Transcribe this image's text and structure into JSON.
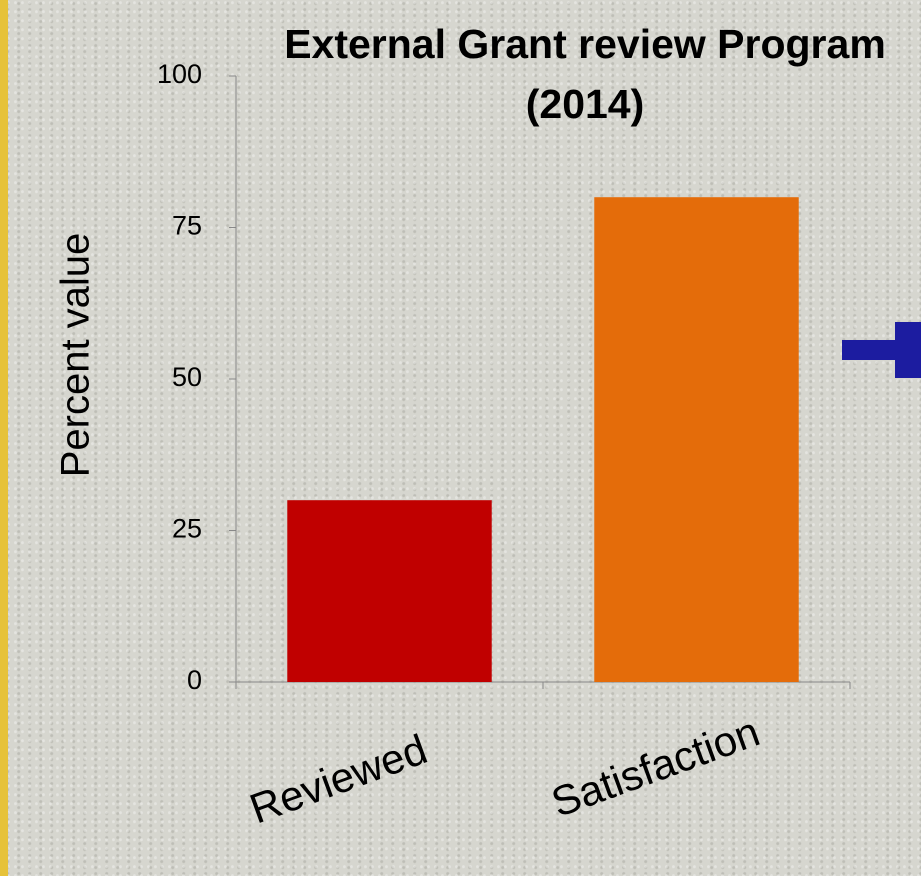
{
  "chart_data": {
    "type": "bar",
    "title": "External Grant review Program (2014)",
    "y_label": "Percent value",
    "categories": [
      "Reviewed",
      "Satisfaction"
    ],
    "values": [
      30,
      80
    ],
    "colors": [
      "#c00000",
      "#e46c0a"
    ],
    "ylim": [
      0,
      100
    ],
    "yticks": [
      0,
      25,
      50,
      75,
      100
    ],
    "grid": false
  }
}
